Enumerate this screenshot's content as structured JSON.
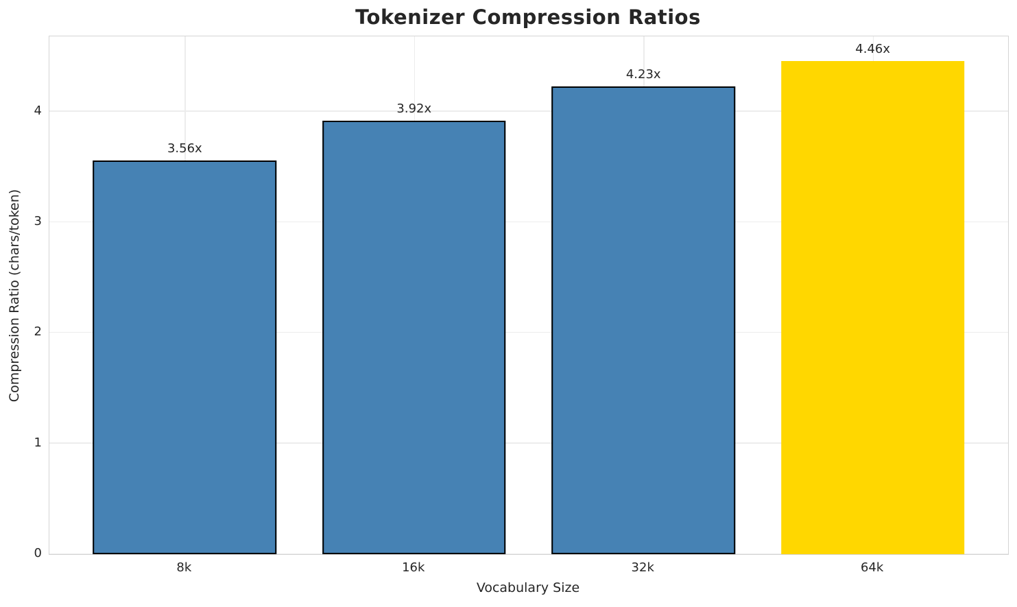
{
  "title": "Tokenizer Compression Ratios",
  "colors": {
    "background": "#ffffff",
    "text": "#262626",
    "grid": "#ececec",
    "spine": "#d4d4d4",
    "bar_default": "#4682B4",
    "bar_highlight": "#FFD700",
    "bar_edge": "#000000"
  },
  "chart_data": {
    "type": "bar",
    "title": "Tokenizer Compression Ratios",
    "xlabel": "Vocabulary Size",
    "ylabel": "Compression Ratio (chars/token)",
    "categories": [
      "8k",
      "16k",
      "32k",
      "64k"
    ],
    "values": [
      3.56,
      3.92,
      4.23,
      4.46
    ],
    "bar_labels": [
      "3.56x",
      "3.92x",
      "4.23x",
      "4.46x"
    ],
    "bar_colors": [
      "#4682B4",
      "#4682B4",
      "#4682B4",
      "#FFD700"
    ],
    "bar_edge_colors": [
      "#000000",
      "#000000",
      "#000000",
      "none"
    ],
    "highlight_index": 3,
    "yticks": [
      0,
      1,
      2,
      3,
      4
    ],
    "ylim": [
      0,
      4.68
    ],
    "grid": "both",
    "legend": "none"
  }
}
